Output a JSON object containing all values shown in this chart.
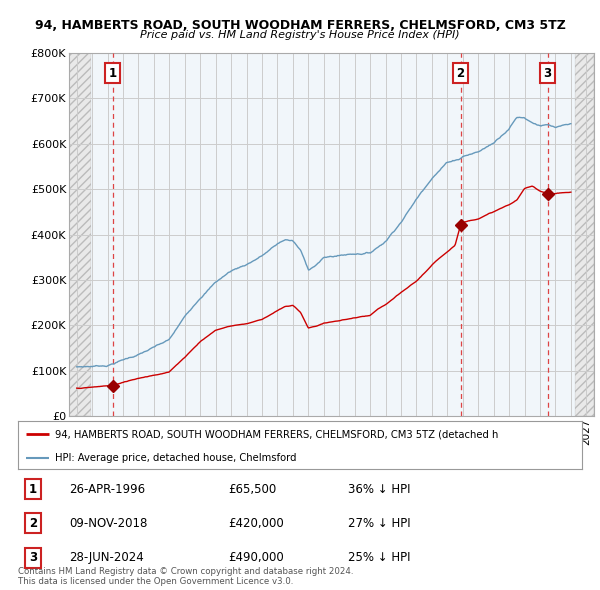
{
  "title1": "94, HAMBERTS ROAD, SOUTH WOODHAM FERRERS, CHELMSFORD, CM3 5TZ",
  "title2": "Price paid vs. HM Land Registry's House Price Index (HPI)",
  "ylim": [
    0,
    800000
  ],
  "yticks": [
    0,
    100000,
    200000,
    300000,
    400000,
    500000,
    600000,
    700000,
    800000
  ],
  "ytick_labels": [
    "£0",
    "£100K",
    "£200K",
    "£300K",
    "£400K",
    "£500K",
    "£600K",
    "£700K",
    "£800K"
  ],
  "xlim_start": 1993.5,
  "xlim_end": 2027.5,
  "purchases": [
    {
      "date_num": 1996.32,
      "price": 65500,
      "label": "1"
    },
    {
      "date_num": 2018.86,
      "price": 420000,
      "label": "2"
    },
    {
      "date_num": 2024.49,
      "price": 490000,
      "label": "3"
    }
  ],
  "purchase_table": [
    {
      "num": "1",
      "date": "26-APR-1996",
      "price": "£65,500",
      "hpi": "36% ↓ HPI"
    },
    {
      "num": "2",
      "date": "09-NOV-2018",
      "price": "£420,000",
      "hpi": "27% ↓ HPI"
    },
    {
      "num": "3",
      "date": "28-JUN-2024",
      "price": "£490,000",
      "hpi": "25% ↓ HPI"
    }
  ],
  "legend_line1": "94, HAMBERTS ROAD, SOUTH WOODHAM FERRERS, CHELMSFORD, CM3 5TZ (detached h",
  "legend_line2": "HPI: Average price, detached house, Chelmsford",
  "footnote1": "Contains HM Land Registry data © Crown copyright and database right 2024.",
  "footnote2": "This data is licensed under the Open Government Licence v3.0.",
  "red_line_color": "#cc0000",
  "blue_line_color": "#6699bb",
  "marker_color": "#990000",
  "dashed_vline_color": "#dd4444",
  "label_box_color": "#cc2222",
  "highlight_bg": "#ddeeff",
  "grid_color": "#cccccc",
  "hatch_color": "#bbbbbb",
  "hatch_left_end": 1994.92,
  "hatch_right_start": 2026.25
}
